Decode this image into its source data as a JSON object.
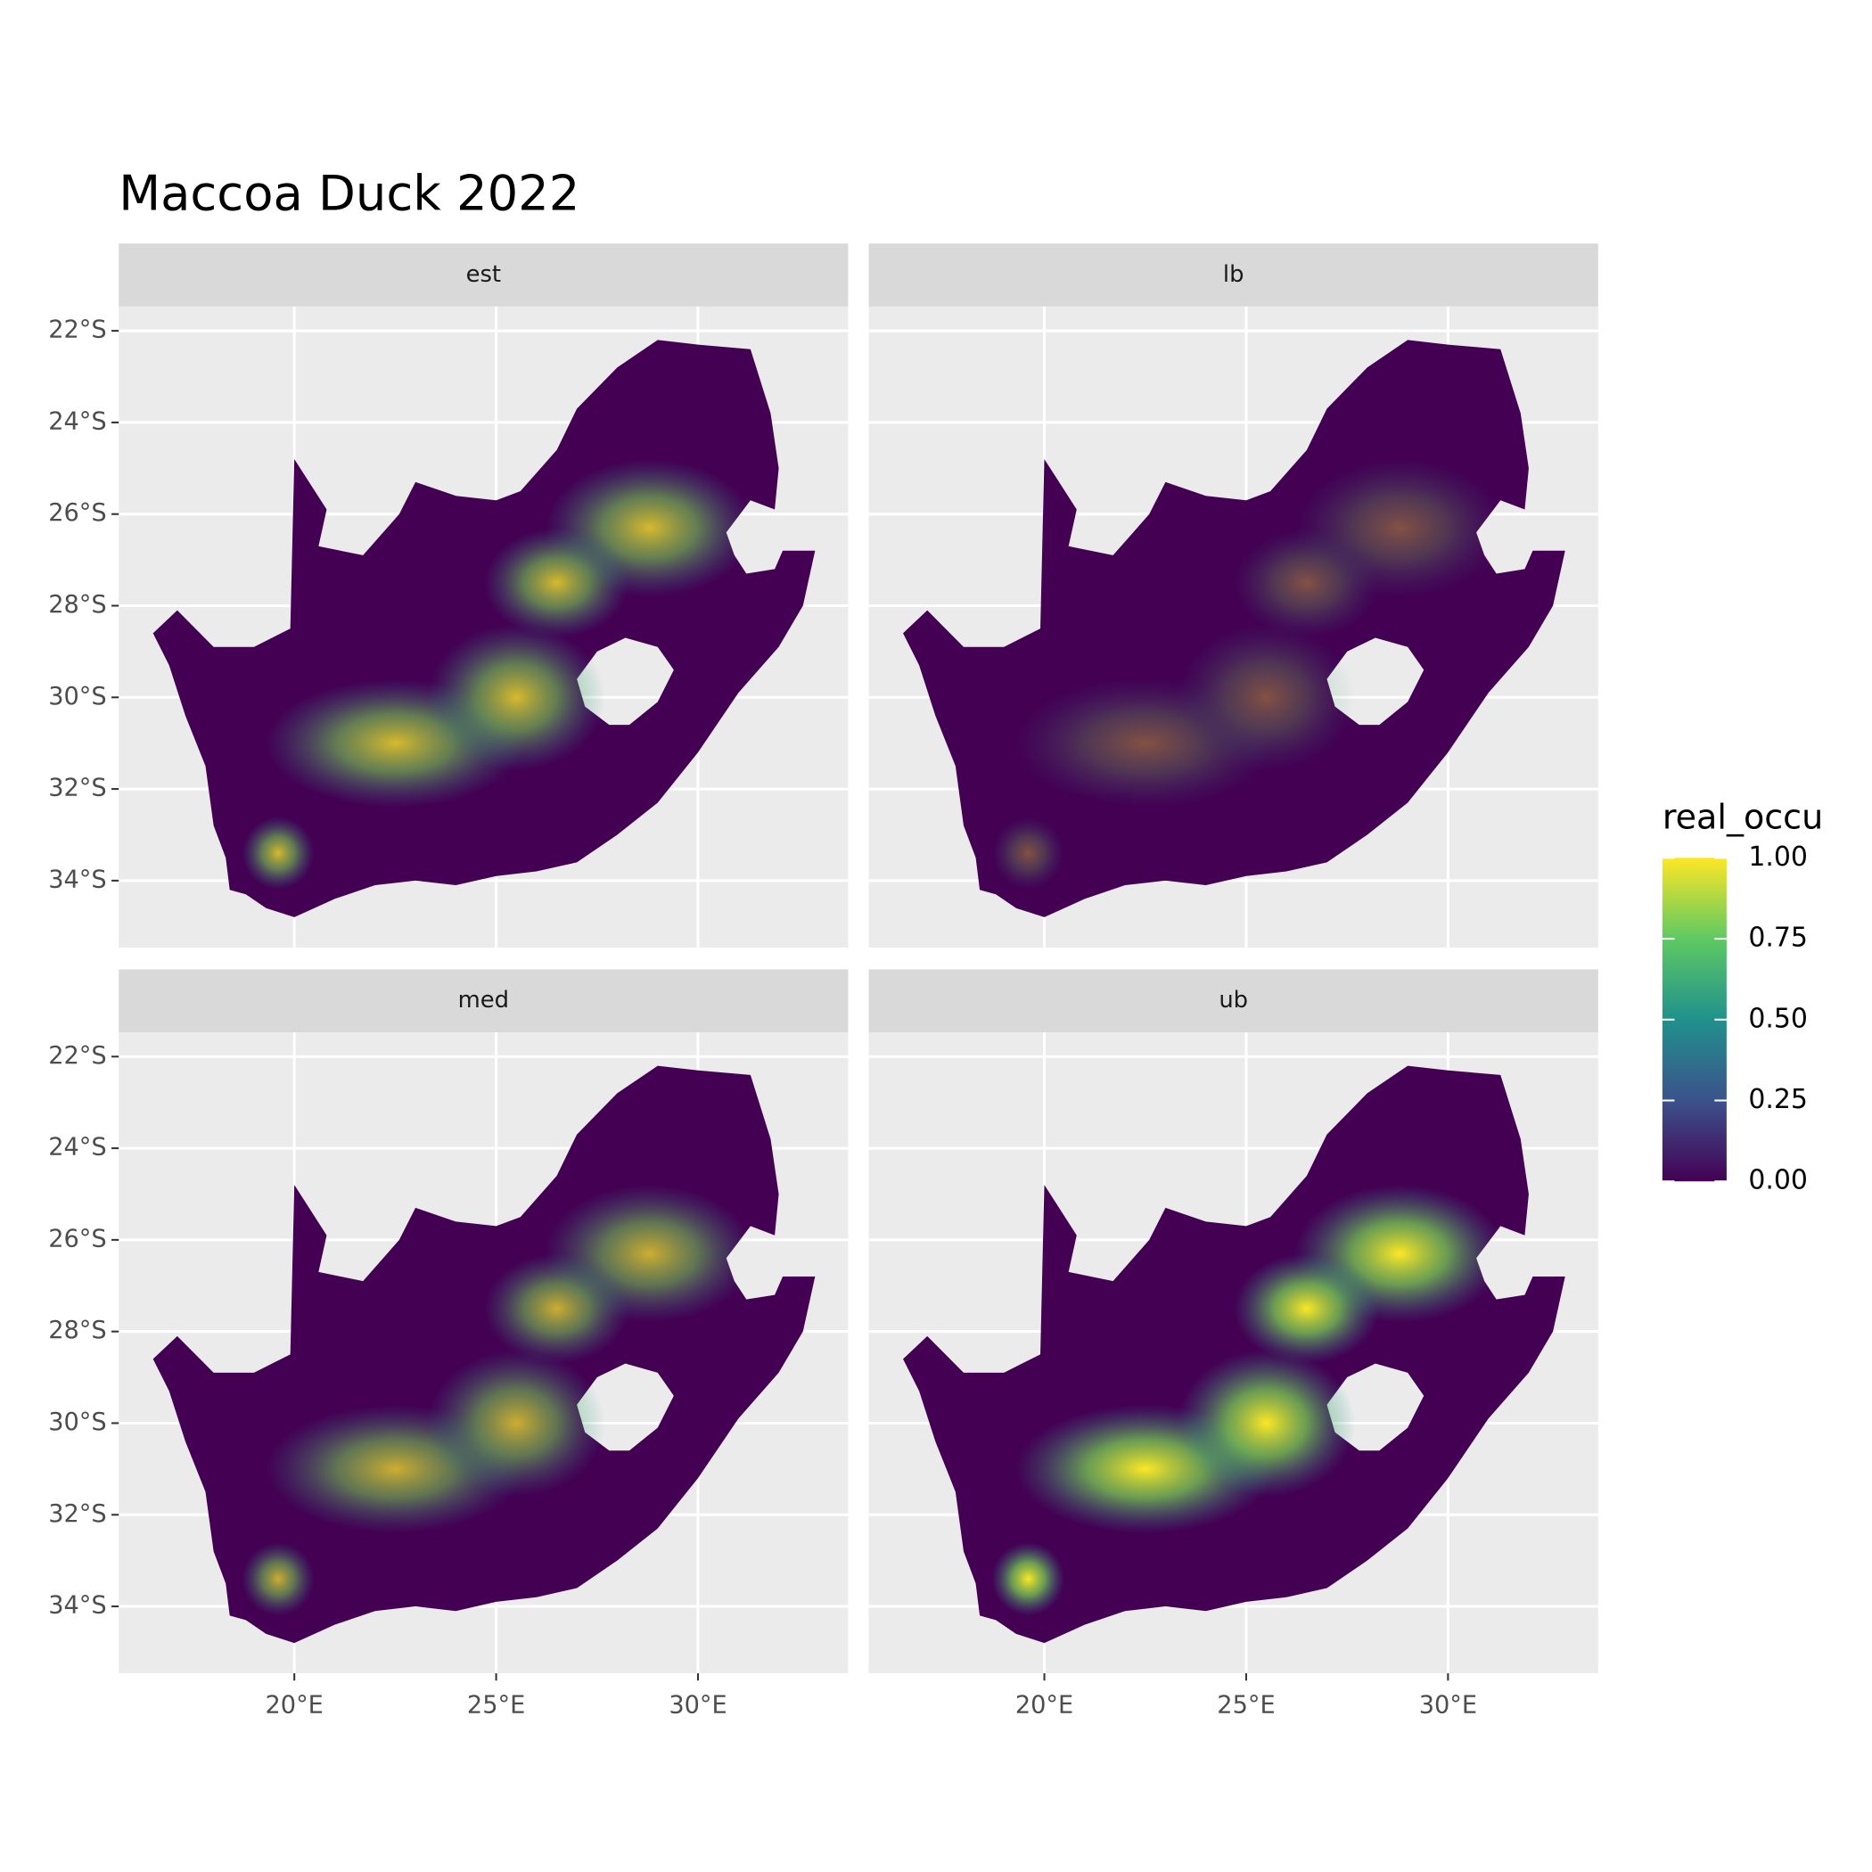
{
  "chart_data": {
    "type": "map",
    "title": "Maccoa Duck 2022",
    "facets": [
      "est",
      "lb",
      "med",
      "ub"
    ],
    "xlim": [
      15.65,
      33.72
    ],
    "ylim": [
      -35.46,
      -21.47
    ],
    "xticks": [
      {
        "value": 20,
        "label": "20°E"
      },
      {
        "value": 25,
        "label": "25°E"
      },
      {
        "value": 30,
        "label": "30°E"
      }
    ],
    "yticks": [
      {
        "value": -22,
        "label": "22°S"
      },
      {
        "value": -24,
        "label": "24°S"
      },
      {
        "value": -26,
        "label": "26°S"
      },
      {
        "value": -28,
        "label": "28°S"
      },
      {
        "value": -30,
        "label": "30°S"
      },
      {
        "value": -32,
        "label": "32°S"
      },
      {
        "value": -34,
        "label": "34°S"
      }
    ],
    "grid": true,
    "legend": {
      "title": "real_occu",
      "limits": [
        0,
        1
      ],
      "colors": [
        "#440154",
        "#3b528b",
        "#21918c",
        "#5ec962",
        "#fde725"
      ],
      "ticks": [
        {
          "value": 0,
          "label": "0.00"
        },
        {
          "value": 0.25,
          "label": "0.25"
        },
        {
          "value": 0.5,
          "label": "0.50"
        },
        {
          "value": 0.75,
          "label": "0.75"
        },
        {
          "value": 1,
          "label": "1.00"
        }
      ]
    }
  }
}
